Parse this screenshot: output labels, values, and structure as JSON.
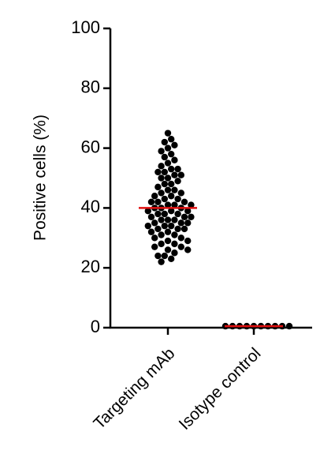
{
  "chart_data": {
    "type": "dotplot",
    "y_label": "Positive cells (%)",
    "categories": [
      "Targeting mAb",
      "Isotype control"
    ],
    "values": [
      [
        65,
        63,
        62,
        61,
        60,
        59,
        58,
        57,
        56,
        55,
        54,
        53,
        53,
        52,
        52,
        51,
        51,
        50,
        50,
        49,
        48,
        48,
        47,
        46,
        46,
        45,
        45,
        44,
        44,
        43,
        43,
        42,
        42,
        42,
        41,
        41,
        41,
        40,
        40,
        40,
        39,
        39,
        39,
        38,
        38,
        38,
        37,
        37,
        37,
        36,
        36,
        36,
        35,
        35,
        35,
        34,
        34,
        34,
        33,
        33,
        33,
        32,
        32,
        31,
        31,
        30,
        30,
        29,
        29,
        28,
        28,
        27,
        27,
        26,
        26,
        25,
        24,
        24,
        23,
        22
      ],
      [
        0.5,
        0.5,
        0.5,
        0.5,
        0.5,
        0.5,
        0.5,
        0.5,
        0.5,
        0.5
      ]
    ],
    "means": [
      40,
      0.5
    ],
    "color": "#000000",
    "mean_color": "#e01010",
    "ylim": [
      0,
      100
    ],
    "yticks": [
      0,
      20,
      40,
      60,
      80,
      100
    ]
  }
}
